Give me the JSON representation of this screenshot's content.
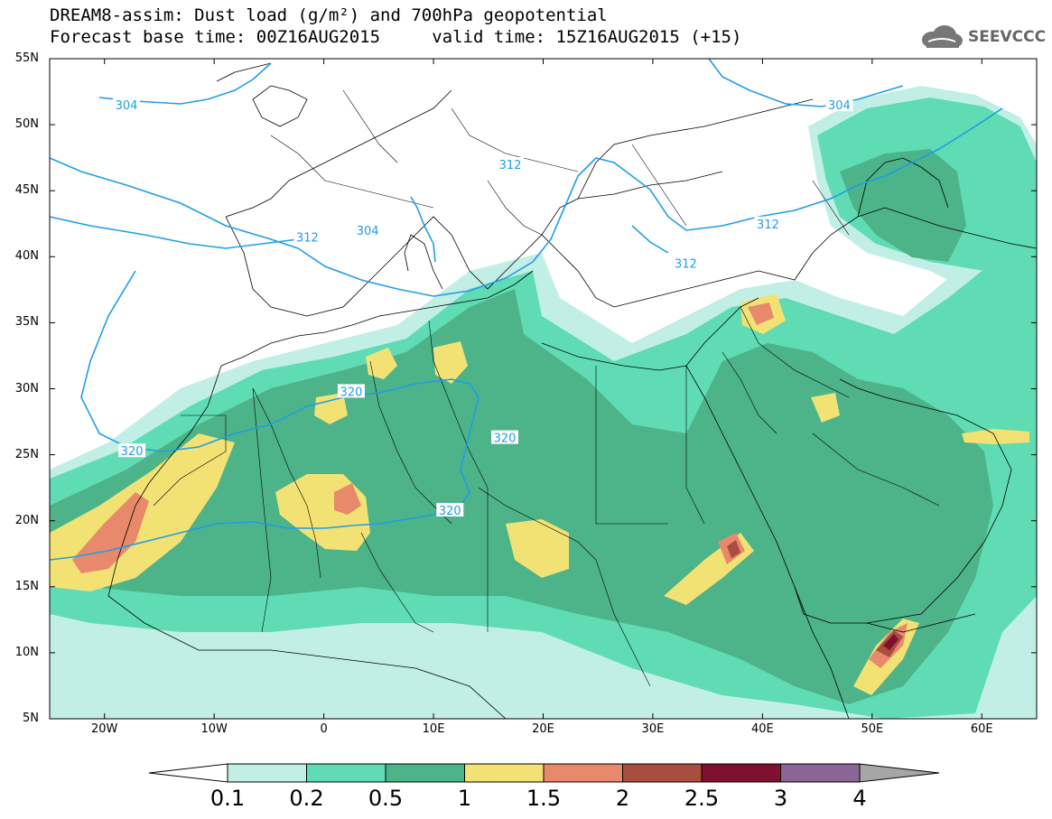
{
  "title": {
    "line1": "DREAM8-assim: Dust load (g/m²) and 700hPa geopotential",
    "line2": "Forecast base time: 00Z16AUG2015     valid time: 15Z16AUG2015 (+15)"
  },
  "logo": {
    "icon": "cloud-icon",
    "text": "SEEVCCC"
  },
  "axes": {
    "lat_labels": [
      "55N",
      "50N",
      "45N",
      "40N",
      "35N",
      "30N",
      "25N",
      "20N",
      "15N",
      "10N",
      "5N"
    ],
    "lon_labels": [
      "20W",
      "10W",
      "0",
      "10E",
      "20E",
      "30E",
      "40E",
      "50E",
      "60E"
    ],
    "lat_values": [
      55,
      50,
      45,
      40,
      35,
      30,
      25,
      20,
      15,
      10,
      5
    ],
    "lon_values": [
      -20,
      -10,
      0,
      10,
      20,
      30,
      40,
      50,
      60
    ],
    "lon_range": [
      -25,
      65
    ],
    "lat_range": [
      5,
      55
    ]
  },
  "contour_labels": [
    {
      "text": "304",
      "lon": -18,
      "lat": 51.5
    },
    {
      "text": "304",
      "lon": 4,
      "lat": 42
    },
    {
      "text": "304",
      "lon": 47,
      "lat": 51.5
    },
    {
      "text": "312",
      "lon": -1.5,
      "lat": 41.5
    },
    {
      "text": "312",
      "lon": 17,
      "lat": 47
    },
    {
      "text": "312",
      "lon": 33,
      "lat": 39.5
    },
    {
      "text": "312",
      "lon": 40.5,
      "lat": 42.5
    },
    {
      "text": "320",
      "lon": -17.5,
      "lat": 25.3
    },
    {
      "text": "320",
      "lon": 2.5,
      "lat": 29.8
    },
    {
      "text": "320",
      "lon": 16.5,
      "lat": 26.3
    },
    {
      "text": "320",
      "lon": 11.5,
      "lat": 20.8
    }
  ],
  "colorbar": {
    "levels": [
      "0.1",
      "0.2",
      "0.5",
      "1",
      "1.5",
      "2",
      "2.5",
      "3",
      "4"
    ],
    "colors": [
      "#c1efe6",
      "#5fdcb3",
      "#4db389",
      "#f2e274",
      "#e8896b",
      "#a94d3f",
      "#7f1030",
      "#8c6597",
      "#a6a6a6"
    ],
    "under_color": "#ffffff"
  },
  "colors": {
    "contour": "#1f9ee6",
    "land_background": "#4db389",
    "ocean": "#ffffff"
  }
}
